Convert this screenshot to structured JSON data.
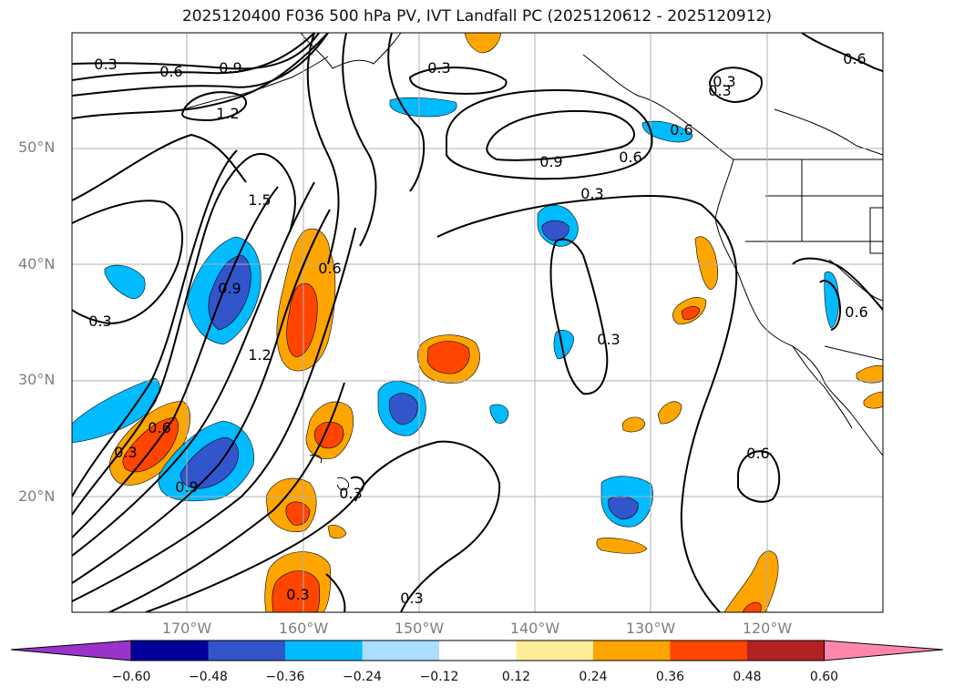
{
  "title": "2025120400 F036 500 hPa PV, IVT Landfall PC (2025120612 - 2025120912)",
  "latitude_labels": [
    "50°N",
    "40°N",
    "30°N",
    "20°N"
  ],
  "longitude_labels": [
    "170°W",
    "160°W",
    "150°W",
    "140°W",
    "130°W",
    "120°W"
  ],
  "colorbar": {
    "tick_labels": [
      "−0.60",
      "−0.48",
      "−0.36",
      "−0.24",
      "−0.12",
      "0.12",
      "0.24",
      "0.36",
      "0.48",
      "0.60"
    ],
    "colors": [
      "#9933cc",
      "#000099",
      "#3355cc",
      "#00bbff",
      "#aaddff",
      "#ffffff",
      "#ffee99",
      "#ffa500",
      "#ff4500",
      "#b22222",
      "#ff88aa"
    ]
  },
  "contour_labels": [
    "0.3",
    "0.6",
    "0.9",
    "1.2",
    "0.6",
    "0.3",
    "0.9",
    "0.6",
    "0.3",
    "0.3",
    "1.5",
    "0.9",
    "0.6",
    "0.3",
    "1.2",
    "0.6",
    "0.3",
    "0.9",
    "0.3",
    "0.6",
    "0.6",
    "0.3",
    "0.3",
    "0.3",
    "0.6",
    "0.3"
  ],
  "fill_colors": {
    "pos1": "#ffa500",
    "pos2": "#ff4500",
    "pos3": "#b22222",
    "neg1": "#00bbff",
    "neg2": "#3355cc",
    "neg3": "#000099"
  }
}
